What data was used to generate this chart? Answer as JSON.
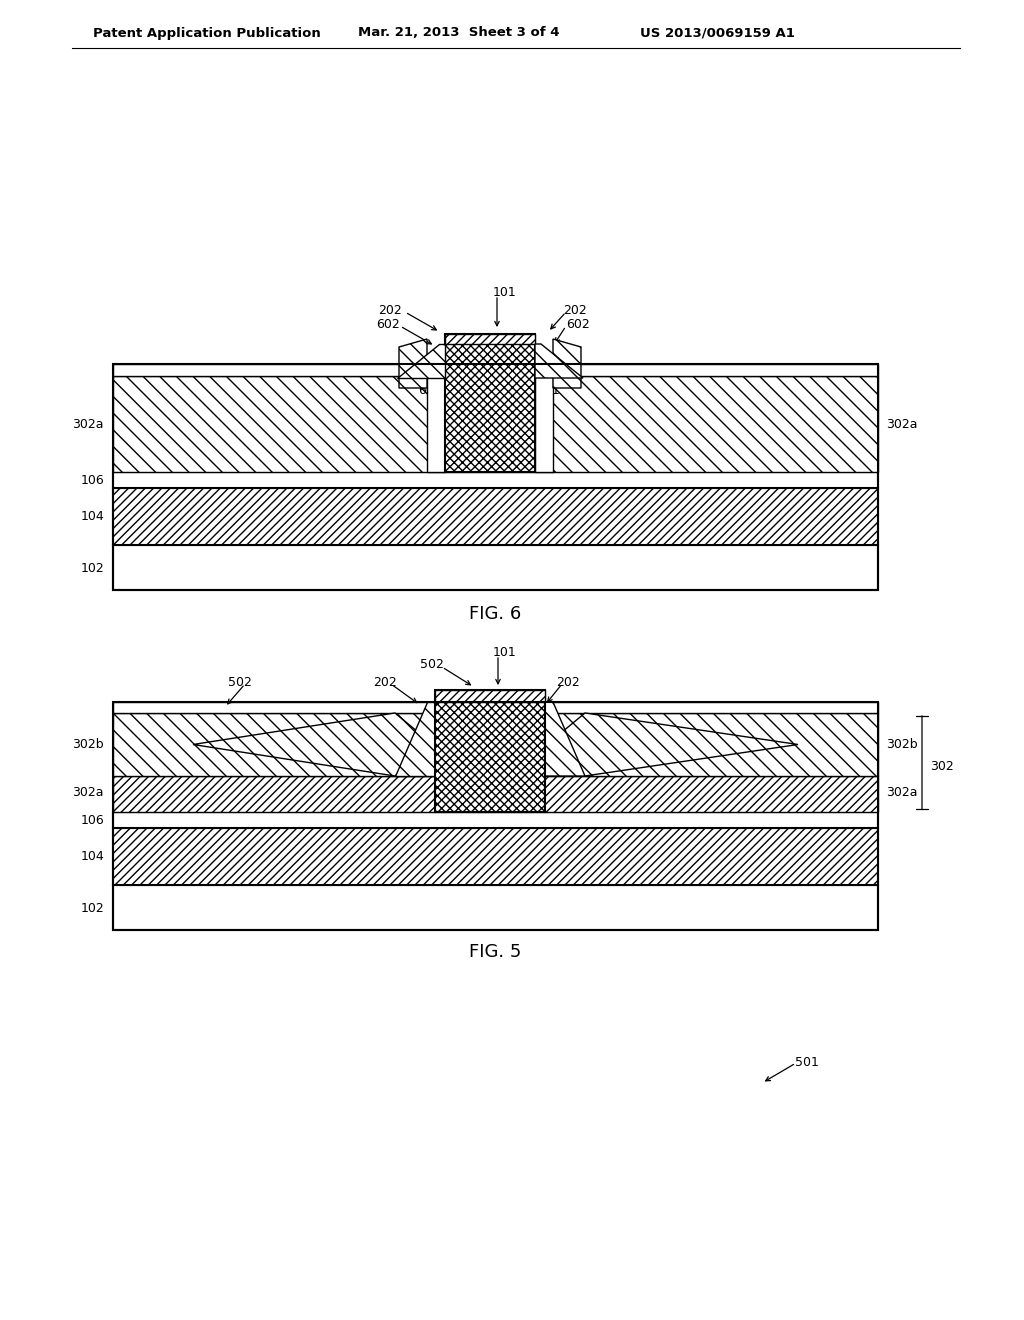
{
  "bg_color": "#ffffff",
  "header_left": "Patent Application Publication",
  "header_mid": "Mar. 21, 2013  Sheet 3 of 4",
  "header_right": "US 2013/0069159 A1"
}
